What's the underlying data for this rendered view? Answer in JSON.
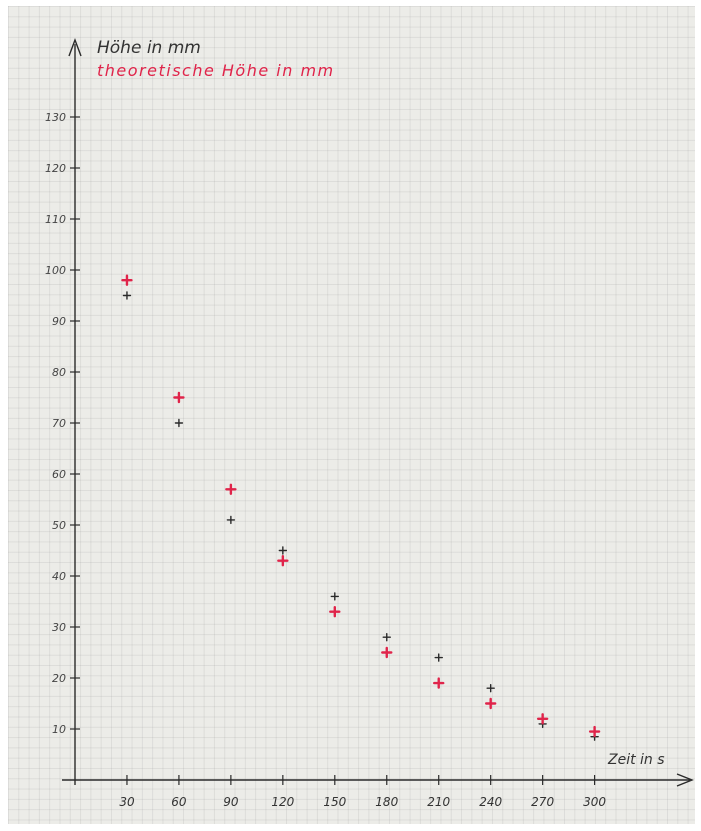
{
  "chart_data": {
    "type": "scatter",
    "title": "",
    "ylabel": "Höhe in mm",
    "ylabel2": "theoretische Höhe in mm",
    "xlabel": "Zeit in s",
    "x_ticks": [
      "30",
      "60",
      "90",
      "120",
      "150",
      "180",
      "210",
      "240",
      "270",
      "300"
    ],
    "y_ticks": [
      "10",
      "20",
      "30",
      "40",
      "50",
      "60",
      "70",
      "80",
      "90",
      "100",
      "110",
      "120",
      "130"
    ],
    "xlim": [
      0,
      315
    ],
    "ylim": [
      0,
      138
    ],
    "grid": true,
    "series": [
      {
        "name": "Höhe in mm",
        "color": "#2a2a2a",
        "points": [
          {
            "x": 30,
            "y": 95
          },
          {
            "x": 60,
            "y": 70
          },
          {
            "x": 90,
            "y": 51
          },
          {
            "x": 120,
            "y": 45
          },
          {
            "x": 150,
            "y": 36
          },
          {
            "x": 180,
            "y": 28
          },
          {
            "x": 210,
            "y": 24
          },
          {
            "x": 240,
            "y": 18
          },
          {
            "x": 270,
            "y": 11
          },
          {
            "x": 300,
            "y": 8.5
          }
        ]
      },
      {
        "name": "theoretische Höhe in mm",
        "color": "#e0244a",
        "points": [
          {
            "x": 30,
            "y": 98
          },
          {
            "x": 60,
            "y": 75
          },
          {
            "x": 90,
            "y": 57
          },
          {
            "x": 120,
            "y": 43
          },
          {
            "x": 150,
            "y": 33
          },
          {
            "x": 180,
            "y": 25
          },
          {
            "x": 210,
            "y": 19
          },
          {
            "x": 240,
            "y": 15
          },
          {
            "x": 270,
            "y": 12
          },
          {
            "x": 300,
            "y": 9.5
          }
        ]
      }
    ]
  }
}
